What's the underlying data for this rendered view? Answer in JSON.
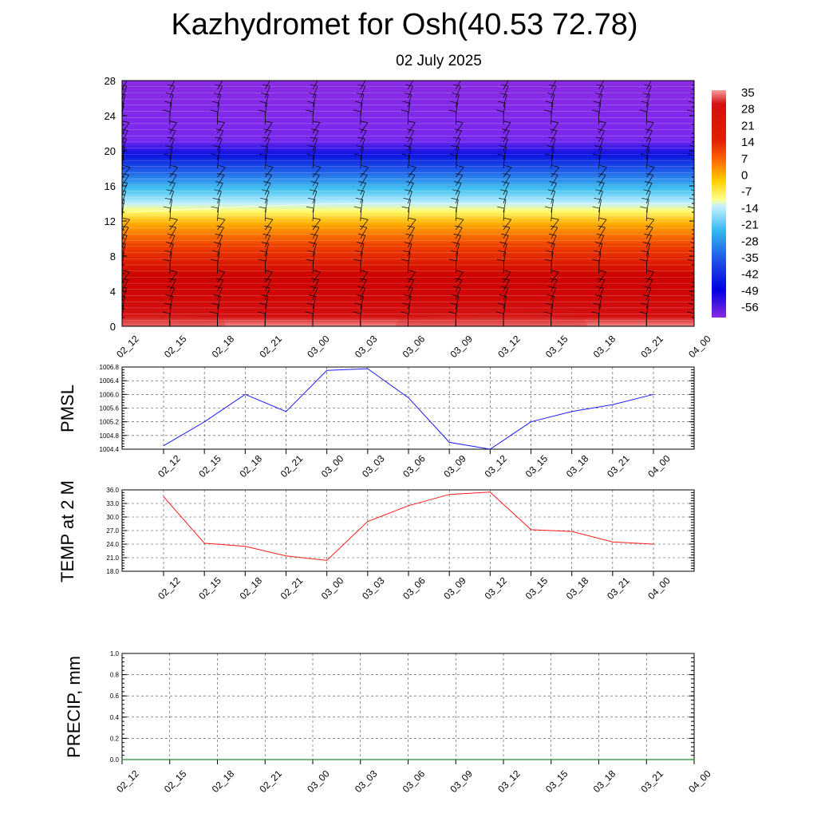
{
  "header": {
    "title": "Kazhydromet for Osh(40.53 72.78)",
    "subtitle": "02 July 2025"
  },
  "colors": {
    "pmsl_line": "#1a1aff",
    "temp_line": "#ff1a1a",
    "precip_line": "#2a8a2a",
    "cross_section_stops": [
      "#f59a9a",
      "#cc0000",
      "#e02000",
      "#ff8000",
      "#ffff66",
      "#50c8f0",
      "#1a3ae6",
      "#0000e0",
      "#8a2be2"
    ]
  },
  "chart_data": [
    {
      "type": "heatmap",
      "name": "temperature-height cross section",
      "x_ticks": [
        "02_12",
        "02_15",
        "02_18",
        "02_21",
        "03_00",
        "03_03",
        "03_06",
        "03_09",
        "03_12",
        "03_15",
        "03_18",
        "03_21",
        "04_00"
      ],
      "y_ticks": [
        0,
        4,
        8,
        12,
        16,
        20,
        24,
        28
      ],
      "ylim": [
        0,
        28
      ],
      "colorbar_labels": [
        "35",
        "28",
        "21",
        "14",
        "7",
        "0",
        "-7",
        "-14",
        "-21",
        "-28",
        "-35",
        "-42",
        "-49",
        "-56"
      ],
      "zero_isotherm_height": [
        13.0,
        13.2,
        13.5,
        13.7,
        13.9,
        14.0,
        14.0,
        14.0,
        14.0,
        14.0,
        14.0,
        14.0,
        14.0
      ],
      "wind_barbs": true
    },
    {
      "type": "line",
      "ylabel": "PMSL",
      "x": [
        "02_12",
        "02_15",
        "02_18",
        "02_21",
        "03_00",
        "03_03",
        "03_06",
        "03_09",
        "03_12",
        "03_15",
        "03_18",
        "03_21",
        "04_00"
      ],
      "values": [
        1004.5,
        1005.2,
        1006.0,
        1005.5,
        1006.7,
        1006.75,
        1005.9,
        1004.6,
        1004.4,
        1005.2,
        1005.5,
        1005.7,
        1006.0
      ],
      "ylim": [
        1004.4,
        1006.8
      ],
      "y_ticks": [
        "1004.4",
        "1004.8",
        "1005.2",
        "1005.6",
        "1006.0",
        "1006.4",
        "1006.8"
      ]
    },
    {
      "type": "line",
      "ylabel": "TEMP at 2 M",
      "x": [
        "02_12",
        "02_15",
        "02_18",
        "02_21",
        "03_00",
        "03_03",
        "03_06",
        "03_09",
        "03_12",
        "03_15",
        "03_18",
        "03_21",
        "04_00"
      ],
      "values": [
        34.5,
        24.2,
        23.5,
        21.4,
        20.4,
        29.0,
        32.5,
        35.0,
        35.5,
        27.2,
        26.8,
        24.5,
        24.0
      ],
      "ylim": [
        18.0,
        36.0
      ],
      "y_ticks": [
        "18.0",
        "21.0",
        "24.0",
        "27.0",
        "30.0",
        "33.0",
        "36.0"
      ]
    },
    {
      "type": "line",
      "ylabel": "PRECIP, mm",
      "x": [
        "02_12",
        "02_15",
        "02_18",
        "02_21",
        "03_00",
        "03_03",
        "03_06",
        "03_09",
        "03_12",
        "03_15",
        "03_18",
        "03_21",
        "04_00"
      ],
      "values": [
        0,
        0,
        0,
        0,
        0,
        0,
        0,
        0,
        0,
        0,
        0,
        0,
        0
      ],
      "ylim": [
        0.0,
        1.0
      ],
      "y_ticks": [
        "0.0",
        "0.2",
        "0.4",
        "0.6",
        "0.8",
        "1.0"
      ]
    }
  ]
}
